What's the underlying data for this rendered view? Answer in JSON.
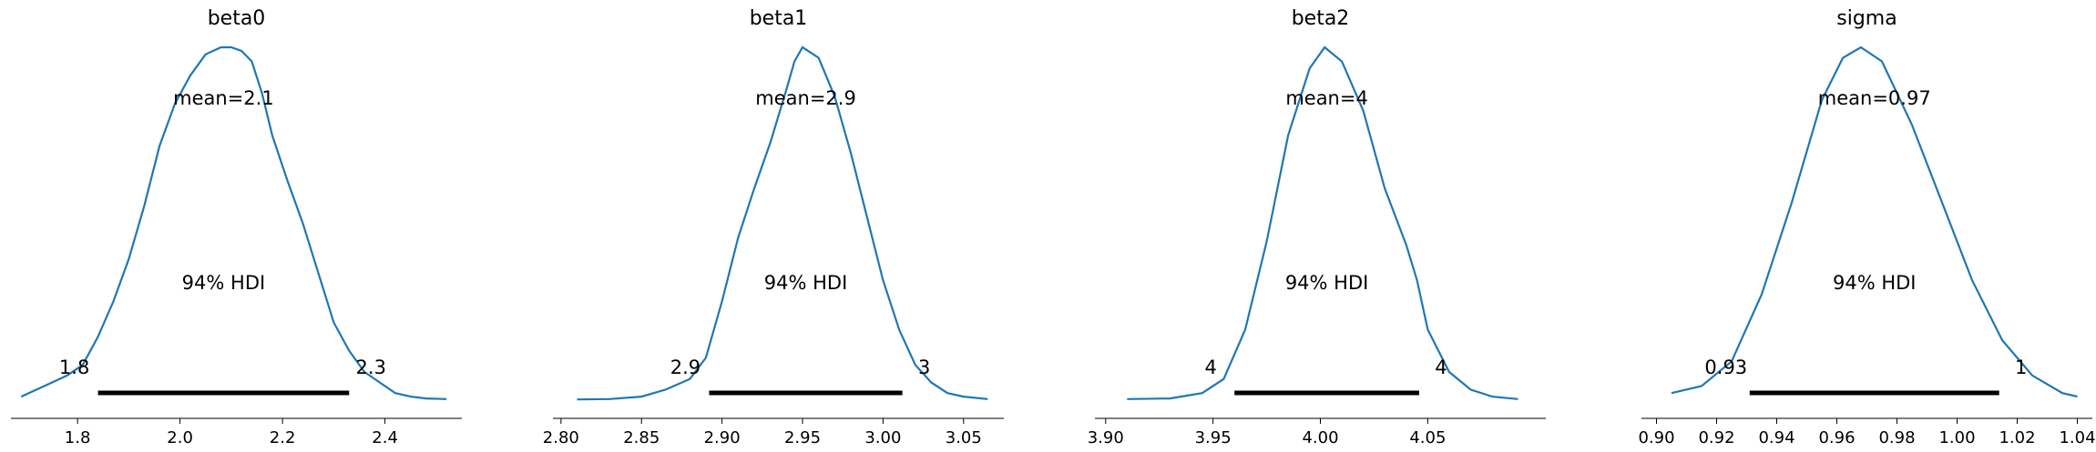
{
  "chart_data": [
    {
      "type": "area",
      "title": "beta0",
      "mean_label": "mean=2.1",
      "hdi_label": "94% HDI",
      "hdi": [
        1.84,
        2.33
      ],
      "hdi_labels": [
        "1.8",
        "2.3"
      ],
      "xlim": [
        1.67,
        2.55
      ],
      "ticks": [
        1.8,
        2.0,
        2.2,
        2.4
      ],
      "tick_labels": [
        "1.8",
        "2.0",
        "2.2",
        "2.4"
      ],
      "kde": {
        "x": [
          1.69,
          1.72,
          1.75,
          1.78,
          1.81,
          1.84,
          1.87,
          1.9,
          1.93,
          1.96,
          1.99,
          2.02,
          2.05,
          2.08,
          2.1,
          2.12,
          2.14,
          2.16,
          2.18,
          2.21,
          2.24,
          2.27,
          2.3,
          2.33,
          2.36,
          2.39,
          2.42,
          2.45,
          2.48,
          2.52
        ],
        "y": [
          0.01,
          0.03,
          0.05,
          0.07,
          0.1,
          0.18,
          0.28,
          0.4,
          0.55,
          0.72,
          0.84,
          0.92,
          0.98,
          1.0,
          1.0,
          0.99,
          0.96,
          0.87,
          0.75,
          0.62,
          0.5,
          0.36,
          0.22,
          0.14,
          0.08,
          0.05,
          0.02,
          0.01,
          0.005,
          0.003
        ]
      }
    },
    {
      "type": "area",
      "title": "beta1",
      "mean_label": "mean=2.9",
      "hdi_label": "94% HDI",
      "hdi": [
        2.892,
        3.012
      ],
      "hdi_labels": [
        "2.9",
        "3"
      ],
      "xlim": [
        2.795,
        3.075
      ],
      "ticks": [
        2.8,
        2.85,
        2.9,
        2.95,
        3.0,
        3.05
      ],
      "tick_labels": [
        "2.80",
        "2.85",
        "2.90",
        "2.95",
        "3.00",
        "3.05"
      ],
      "kde": {
        "x": [
          2.81,
          2.83,
          2.85,
          2.865,
          2.88,
          2.89,
          2.9,
          2.91,
          2.92,
          2.93,
          2.94,
          2.945,
          2.95,
          2.96,
          2.97,
          2.98,
          2.99,
          3.0,
          3.01,
          3.02,
          3.03,
          3.04,
          3.05,
          3.065
        ],
        "y": [
          0.002,
          0.003,
          0.01,
          0.03,
          0.06,
          0.12,
          0.28,
          0.46,
          0.6,
          0.73,
          0.88,
          0.96,
          1.0,
          0.97,
          0.86,
          0.7,
          0.52,
          0.34,
          0.2,
          0.1,
          0.05,
          0.02,
          0.01,
          0.003
        ]
      }
    },
    {
      "type": "area",
      "title": "beta2",
      "mean_label": "mean=4",
      "hdi_label": "94% HDI",
      "hdi": [
        3.96,
        4.046
      ],
      "hdi_labels": [
        "4",
        "4"
      ],
      "xlim": [
        3.895,
        4.105
      ],
      "ticks": [
        3.9,
        3.95,
        4.0,
        4.05
      ],
      "tick_labels": [
        "3.90",
        "3.95",
        "4.00",
        "4.05"
      ],
      "kde": {
        "x": [
          3.91,
          3.93,
          3.945,
          3.955,
          3.965,
          3.975,
          3.985,
          3.995,
          4.002,
          4.01,
          4.02,
          4.03,
          4.04,
          4.045,
          4.05,
          4.06,
          4.07,
          4.08,
          4.092
        ],
        "y": [
          0.003,
          0.005,
          0.02,
          0.06,
          0.2,
          0.45,
          0.75,
          0.94,
          1.0,
          0.96,
          0.82,
          0.6,
          0.44,
          0.34,
          0.2,
          0.08,
          0.03,
          0.01,
          0.003
        ]
      }
    },
    {
      "type": "area",
      "title": "sigma",
      "mean_label": "mean=0.97",
      "hdi_label": "94% HDI",
      "hdi": [
        0.931,
        1.014
      ],
      "hdi_labels": [
        "0.93",
        "1"
      ],
      "xlim": [
        0.895,
        1.045
      ],
      "ticks": [
        0.9,
        0.92,
        0.94,
        0.96,
        0.98,
        1.0,
        1.02,
        1.04
      ],
      "tick_labels": [
        "0.90",
        "0.92",
        "0.94",
        "0.96",
        "0.98",
        "1.00",
        "1.02",
        "1.04"
      ],
      "kde": {
        "x": [
          0.905,
          0.915,
          0.925,
          0.935,
          0.945,
          0.955,
          0.962,
          0.968,
          0.975,
          0.985,
          0.995,
          1.005,
          1.015,
          1.025,
          1.035,
          1.04
        ],
        "y": [
          0.02,
          0.04,
          0.11,
          0.3,
          0.56,
          0.85,
          0.97,
          1.0,
          0.96,
          0.78,
          0.56,
          0.34,
          0.17,
          0.07,
          0.02,
          0.01
        ]
      }
    }
  ]
}
